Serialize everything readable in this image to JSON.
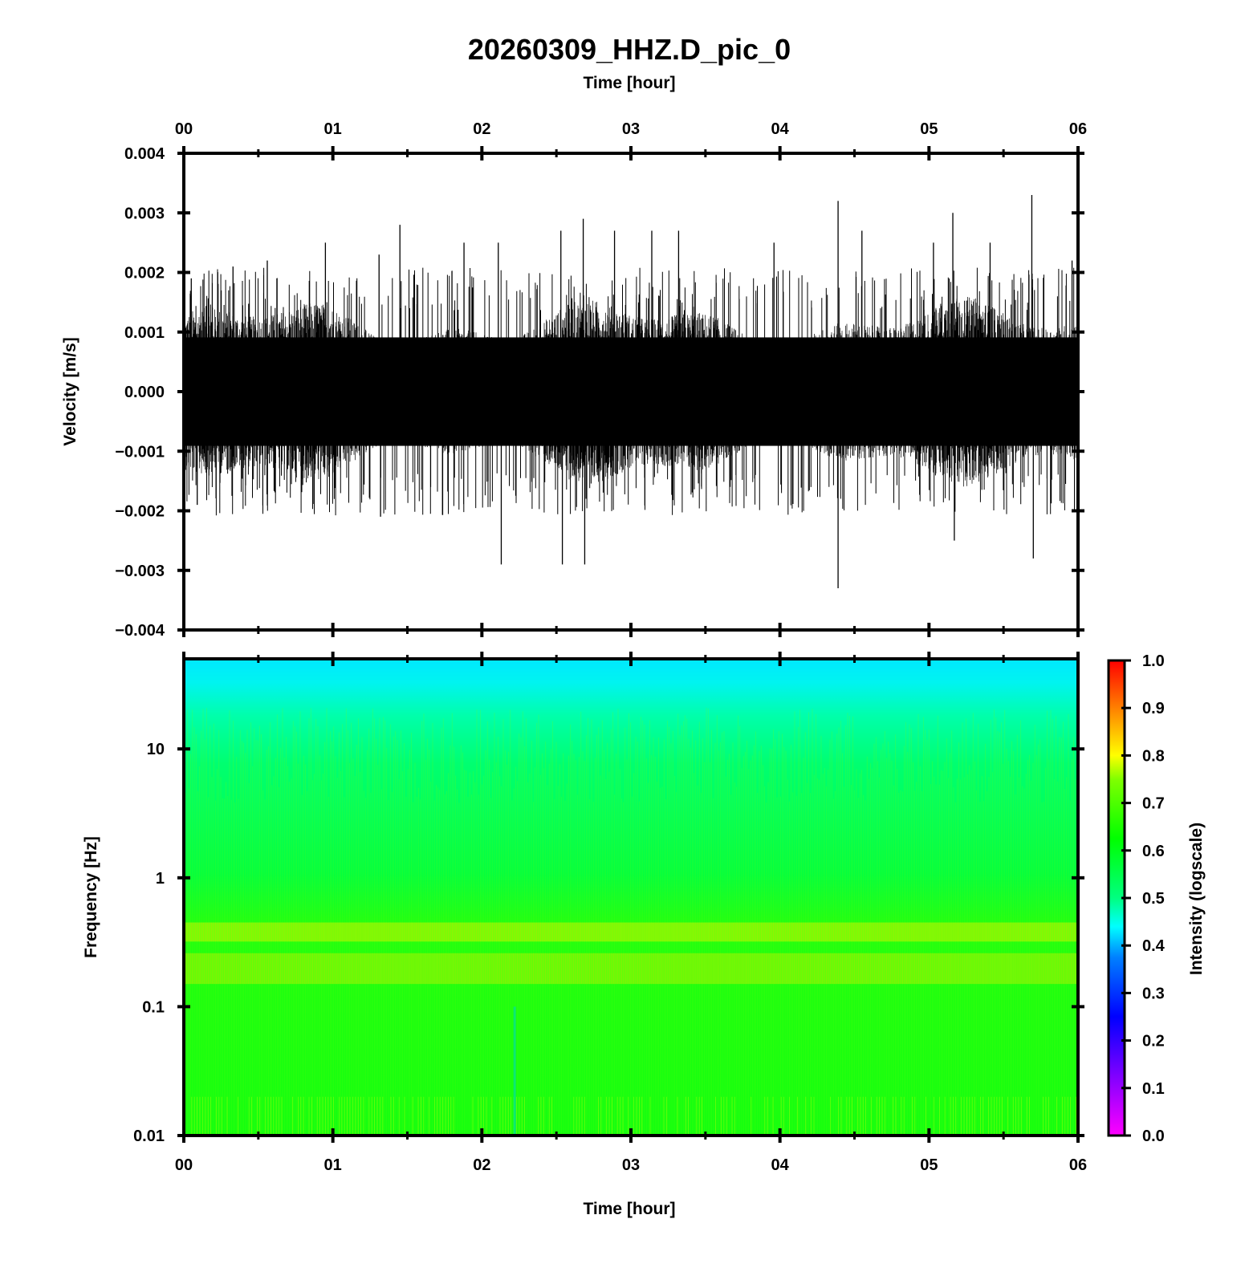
{
  "chart_data": [
    {
      "type": "line",
      "title": "20260309_HHZ.D_pic_0",
      "top_xlabel": "Time [hour]",
      "ylabel": "Velocity [m/s]",
      "x_ticks": [
        "00",
        "01",
        "02",
        "03",
        "04",
        "05",
        "06"
      ],
      "xlim": [
        0,
        6
      ],
      "y_ticks": [
        "0.004",
        "0.003",
        "0.002",
        "0.001",
        "0.000",
        "−0.001",
        "−0.002",
        "−0.003",
        "−0.004"
      ],
      "ylim": [
        -0.004,
        0.004
      ],
      "series": [
        {
          "color": "#000000",
          "noise_envelope": {
            "min": -0.0013,
            "max": 0.0013
          },
          "peaks": [
            {
              "x": 0.05,
              "y": 0.0019
            },
            {
              "x": 0.09,
              "y": -0.0019
            },
            {
              "x": 0.33,
              "y": 0.0021
            },
            {
              "x": 0.56,
              "y": 0.0022
            },
            {
              "x": 0.95,
              "y": 0.0025
            },
            {
              "x": 1.31,
              "y": 0.0023
            },
            {
              "x": 1.45,
              "y": 0.0028
            },
            {
              "x": 1.32,
              "y": -0.0021
            },
            {
              "x": 1.88,
              "y": 0.0025
            },
            {
              "x": 2.11,
              "y": 0.0025
            },
            {
              "x": 2.13,
              "y": -0.0029
            },
            {
              "x": 2.53,
              "y": 0.0027
            },
            {
              "x": 2.54,
              "y": -0.0029
            },
            {
              "x": 2.68,
              "y": 0.0029
            },
            {
              "x": 2.69,
              "y": -0.0029
            },
            {
              "x": 2.89,
              "y": 0.0027
            },
            {
              "x": 3.14,
              "y": 0.0027
            },
            {
              "x": 3.32,
              "y": 0.0027
            },
            {
              "x": 3.96,
              "y": 0.0025
            },
            {
              "x": 4.39,
              "y": 0.0032
            },
            {
              "x": 4.39,
              "y": -0.0033
            },
            {
              "x": 4.55,
              "y": 0.0027
            },
            {
              "x": 5.03,
              "y": 0.0025
            },
            {
              "x": 5.16,
              "y": 0.003
            },
            {
              "x": 5.17,
              "y": -0.0025
            },
            {
              "x": 5.41,
              "y": 0.0025
            },
            {
              "x": 5.69,
              "y": 0.0033
            },
            {
              "x": 5.7,
              "y": -0.0028
            },
            {
              "x": 5.96,
              "y": 0.0022
            }
          ]
        }
      ]
    },
    {
      "type": "heatmap",
      "xlabel": "Time [hour]",
      "ylabel": "Frequency [Hz]",
      "x_ticks": [
        "00",
        "01",
        "02",
        "03",
        "04",
        "05",
        "06"
      ],
      "xlim": [
        0,
        6
      ],
      "y_scale": "log",
      "y_ticks": [
        "10",
        "1",
        "0.1",
        "0.01"
      ],
      "ylim": [
        0.01,
        50
      ],
      "colorbar": {
        "label": "Intensity (logscale)",
        "ticks": [
          "1.0",
          "0.9",
          "0.8",
          "0.7",
          "0.6",
          "0.5",
          "0.4",
          "0.3",
          "0.2",
          "0.1",
          "0.0"
        ],
        "range": [
          0,
          1
        ]
      },
      "intensity_profile": [
        {
          "freq": 0.01,
          "value": 0.62
        },
        {
          "freq": 0.05,
          "value": 0.6
        },
        {
          "freq": 0.2,
          "value": 0.64
        },
        {
          "freq": 0.3,
          "value": 0.6
        },
        {
          "freq": 0.4,
          "value": 0.65
        },
        {
          "freq": 1,
          "value": 0.58
        },
        {
          "freq": 10,
          "value": 0.55
        },
        {
          "freq": 25,
          "value": 0.47
        },
        {
          "freq": 50,
          "value": 0.41
        }
      ]
    }
  ]
}
